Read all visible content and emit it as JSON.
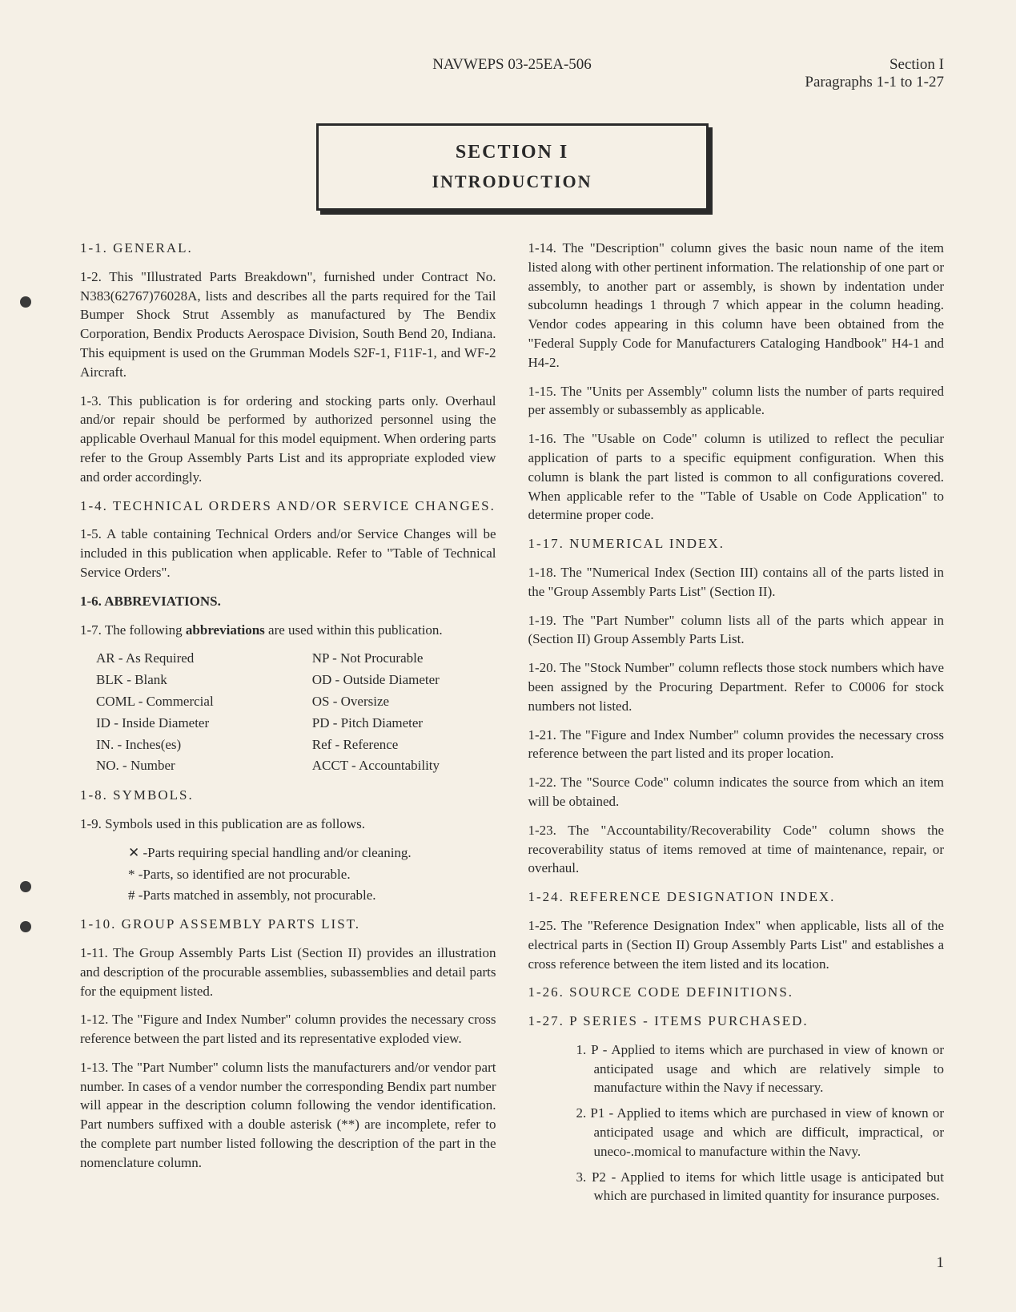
{
  "header": {
    "center": "NAVWEPS 03-25EA-506",
    "right_line1": "Section I",
    "right_line2": "Paragraphs 1-1 to 1-27"
  },
  "section_box": {
    "title": "SECTION I",
    "subtitle": "INTRODUCTION"
  },
  "left_column": {
    "p1_1": "1-1.  GENERAL.",
    "p1_2": "1-2.  This \"Illustrated Parts Breakdown\", furnished under Contract No. N383(62767)76028A, lists and describes all the parts required for the Tail Bumper Shock Strut Assembly as manufactured by The Bendix Corporation, Bendix Products Aerospace Division, South Bend 20, Indiana. This equipment is used on the Grumman Models S2F-1, F11F-1, and WF-2 Aircraft.",
    "p1_3": "1-3.  This publication is for ordering and stocking parts only. Overhaul and/or repair should be performed by authorized personnel using the applicable Overhaul Manual for this model equipment. When ordering parts refer to the Group Assembly Parts List and its appropriate exploded view and order accordingly.",
    "p1_4": "1-4.  TECHNICAL ORDERS AND/OR SERVICE CHANGES.",
    "p1_5": "1-5.  A table containing Technical Orders and/or Service Changes will be included in this publication when applicable. Refer to \"Table of Technical Service Orders\".",
    "p1_6": "1-6.  ABBREVIATIONS.",
    "p1_7_pre": "1-7.  The following ",
    "p1_7_bold": "abbreviations",
    "p1_7_post": " are used within this publication.",
    "abbrev_left": [
      "AR - As Required",
      "BLK - Blank",
      "COML - Commercial",
      "ID - Inside Diameter",
      "IN. - Inches(es)",
      "NO. - Number"
    ],
    "abbrev_right": [
      "NP - Not Procurable",
      "OD - Outside Diameter",
      "OS - Oversize",
      "PD - Pitch Diameter",
      "Ref - Reference",
      "ACCT - Accountability"
    ],
    "p1_8": "1-8.  SYMBOLS.",
    "p1_9": "1-9.  Symbols used in this publication are as follows.",
    "symbols": [
      "✕ -Parts requiring special handling and/or cleaning.",
      "* -Parts, so identified are not procurable.",
      "# -Parts matched in assembly, not procurable."
    ],
    "p1_10": "1-10. GROUP ASSEMBLY PARTS LIST.",
    "p1_11": "1-11. The Group Assembly Parts List (Section II) provides an illustration and description of the procurable assemblies, subassemblies and detail parts for the equipment listed.",
    "p1_12": "1-12. The \"Figure and Index Number\" column provides the necessary cross reference between the part listed and its representative exploded view.",
    "p1_13": "1-13. The \"Part Number\" column lists the manufacturers and/or vendor part number. In cases of a vendor number the corresponding Bendix part number will appear in the description column following the vendor identification. Part numbers suffixed with a double asterisk (**) are incomplete, refer to the complete part number listed following the description of the part in the nomenclature column."
  },
  "right_column": {
    "p1_14": "1-14. The \"Description\" column gives the basic noun name of the item listed along with other pertinent information. The relationship of one part or assembly, to another part or assembly, is shown by indentation under subcolumn headings 1 through 7 which appear in the column heading. Vendor codes appearing in this column have been obtained from the \"Federal Supply Code for Manufacturers Cataloging Handbook\" H4-1 and H4-2.",
    "p1_15": "1-15. The \"Units per Assembly\" column lists the number of parts required per assembly or subassembly as applicable.",
    "p1_16": "1-16. The \"Usable on Code\" column is utilized to reflect the peculiar application of parts to a specific equipment configuration. When this column is blank the part listed is common to all configurations covered. When applicable refer to the \"Table of Usable on Code Application\" to determine proper code.",
    "p1_17": "1-17. NUMERICAL INDEX.",
    "p1_18": "1-18. The \"Numerical Index (Section III) contains all of the parts listed in the \"Group Assembly Parts List\" (Section II).",
    "p1_19": "1-19. The \"Part Number\" column lists all of the parts which appear in (Section II) Group Assembly Parts List.",
    "p1_20": "1-20. The \"Stock Number\" column reflects those stock numbers which have been assigned by the Procuring Department. Refer to C0006 for stock numbers not listed.",
    "p1_21": "1-21. The \"Figure and Index Number\" column provides the necessary cross reference between the part listed and its proper location.",
    "p1_22": "1-22. The \"Source Code\" column indicates the source from which an item will be obtained.",
    "p1_23": "1-23. The \"Accountability/Recoverability Code\" column shows the recoverability status of items removed at time of maintenance, repair, or overhaul.",
    "p1_24": "1-24. REFERENCE DESIGNATION INDEX.",
    "p1_25": "1-25. The \"Reference Designation Index\" when applicable, lists all of the electrical parts in (Section II) Group Assembly Parts List\" and establishes a cross reference between the item listed and its location.",
    "p1_26": "1-26. SOURCE CODE DEFINITIONS.",
    "p1_27": "1-27. P SERIES - ITEMS PURCHASED.",
    "source_items": [
      "1. P - Applied to items which are purchased in view of known or anticipated usage and which are relatively simple to manufacture within the Navy if necessary.",
      "2. P1 - Applied to items which are purchased in view of known or anticipated usage and which are difficult, impractical, or uneco-.momical to manufacture within the Navy.",
      "3. P2 - Applied to items for which little usage is anticipated but which are purchased in limited quantity for insurance purposes."
    ]
  },
  "page_number": "1",
  "colors": {
    "background": "#f5f0e6",
    "text": "#2a2a2a",
    "hole": "#3a3a3a"
  }
}
